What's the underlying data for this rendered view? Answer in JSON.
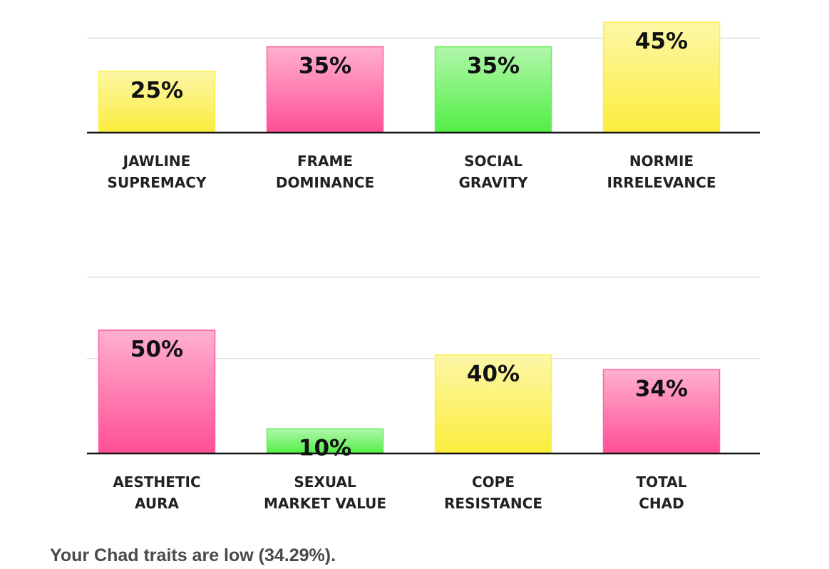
{
  "chart_data": [
    {
      "type": "bar",
      "categories": [
        [
          "JAWLINE",
          "SUPREMACY"
        ],
        [
          "FRAME",
          "DOMINANCE"
        ],
        [
          "SOCIAL",
          "GRAVITY"
        ],
        [
          "NORMIE",
          "IRRELEVANCE"
        ]
      ],
      "values": [
        25,
        35,
        35,
        45
      ],
      "value_labels": [
        "25%",
        "35%",
        "35%",
        "45%"
      ],
      "colors": [
        "#fbed3c",
        "#ff4f95",
        "#52ee45",
        "#fbed3c"
      ],
      "ylim": [
        0,
        50
      ],
      "yticks": [
        38.5
      ],
      "grid": true
    },
    {
      "type": "bar",
      "categories": [
        [
          "AESTHETIC",
          "AURA"
        ],
        [
          "SEXUAL",
          "MARKET VALUE"
        ],
        [
          "COPE",
          "RESISTANCE"
        ],
        [
          "TOTAL",
          "CHAD"
        ]
      ],
      "values": [
        50,
        10,
        40,
        34
      ],
      "value_labels": [
        "50%",
        "10%",
        "40%",
        "34%"
      ],
      "colors": [
        "#ff4f95",
        "#52ee45",
        "#fbed3c",
        "#ff4f95"
      ],
      "ylim": [
        0,
        72
      ],
      "yticks": [
        38.5,
        71.5
      ],
      "grid": true
    }
  ],
  "summary": "Your Chad traits are low (34.29%)."
}
